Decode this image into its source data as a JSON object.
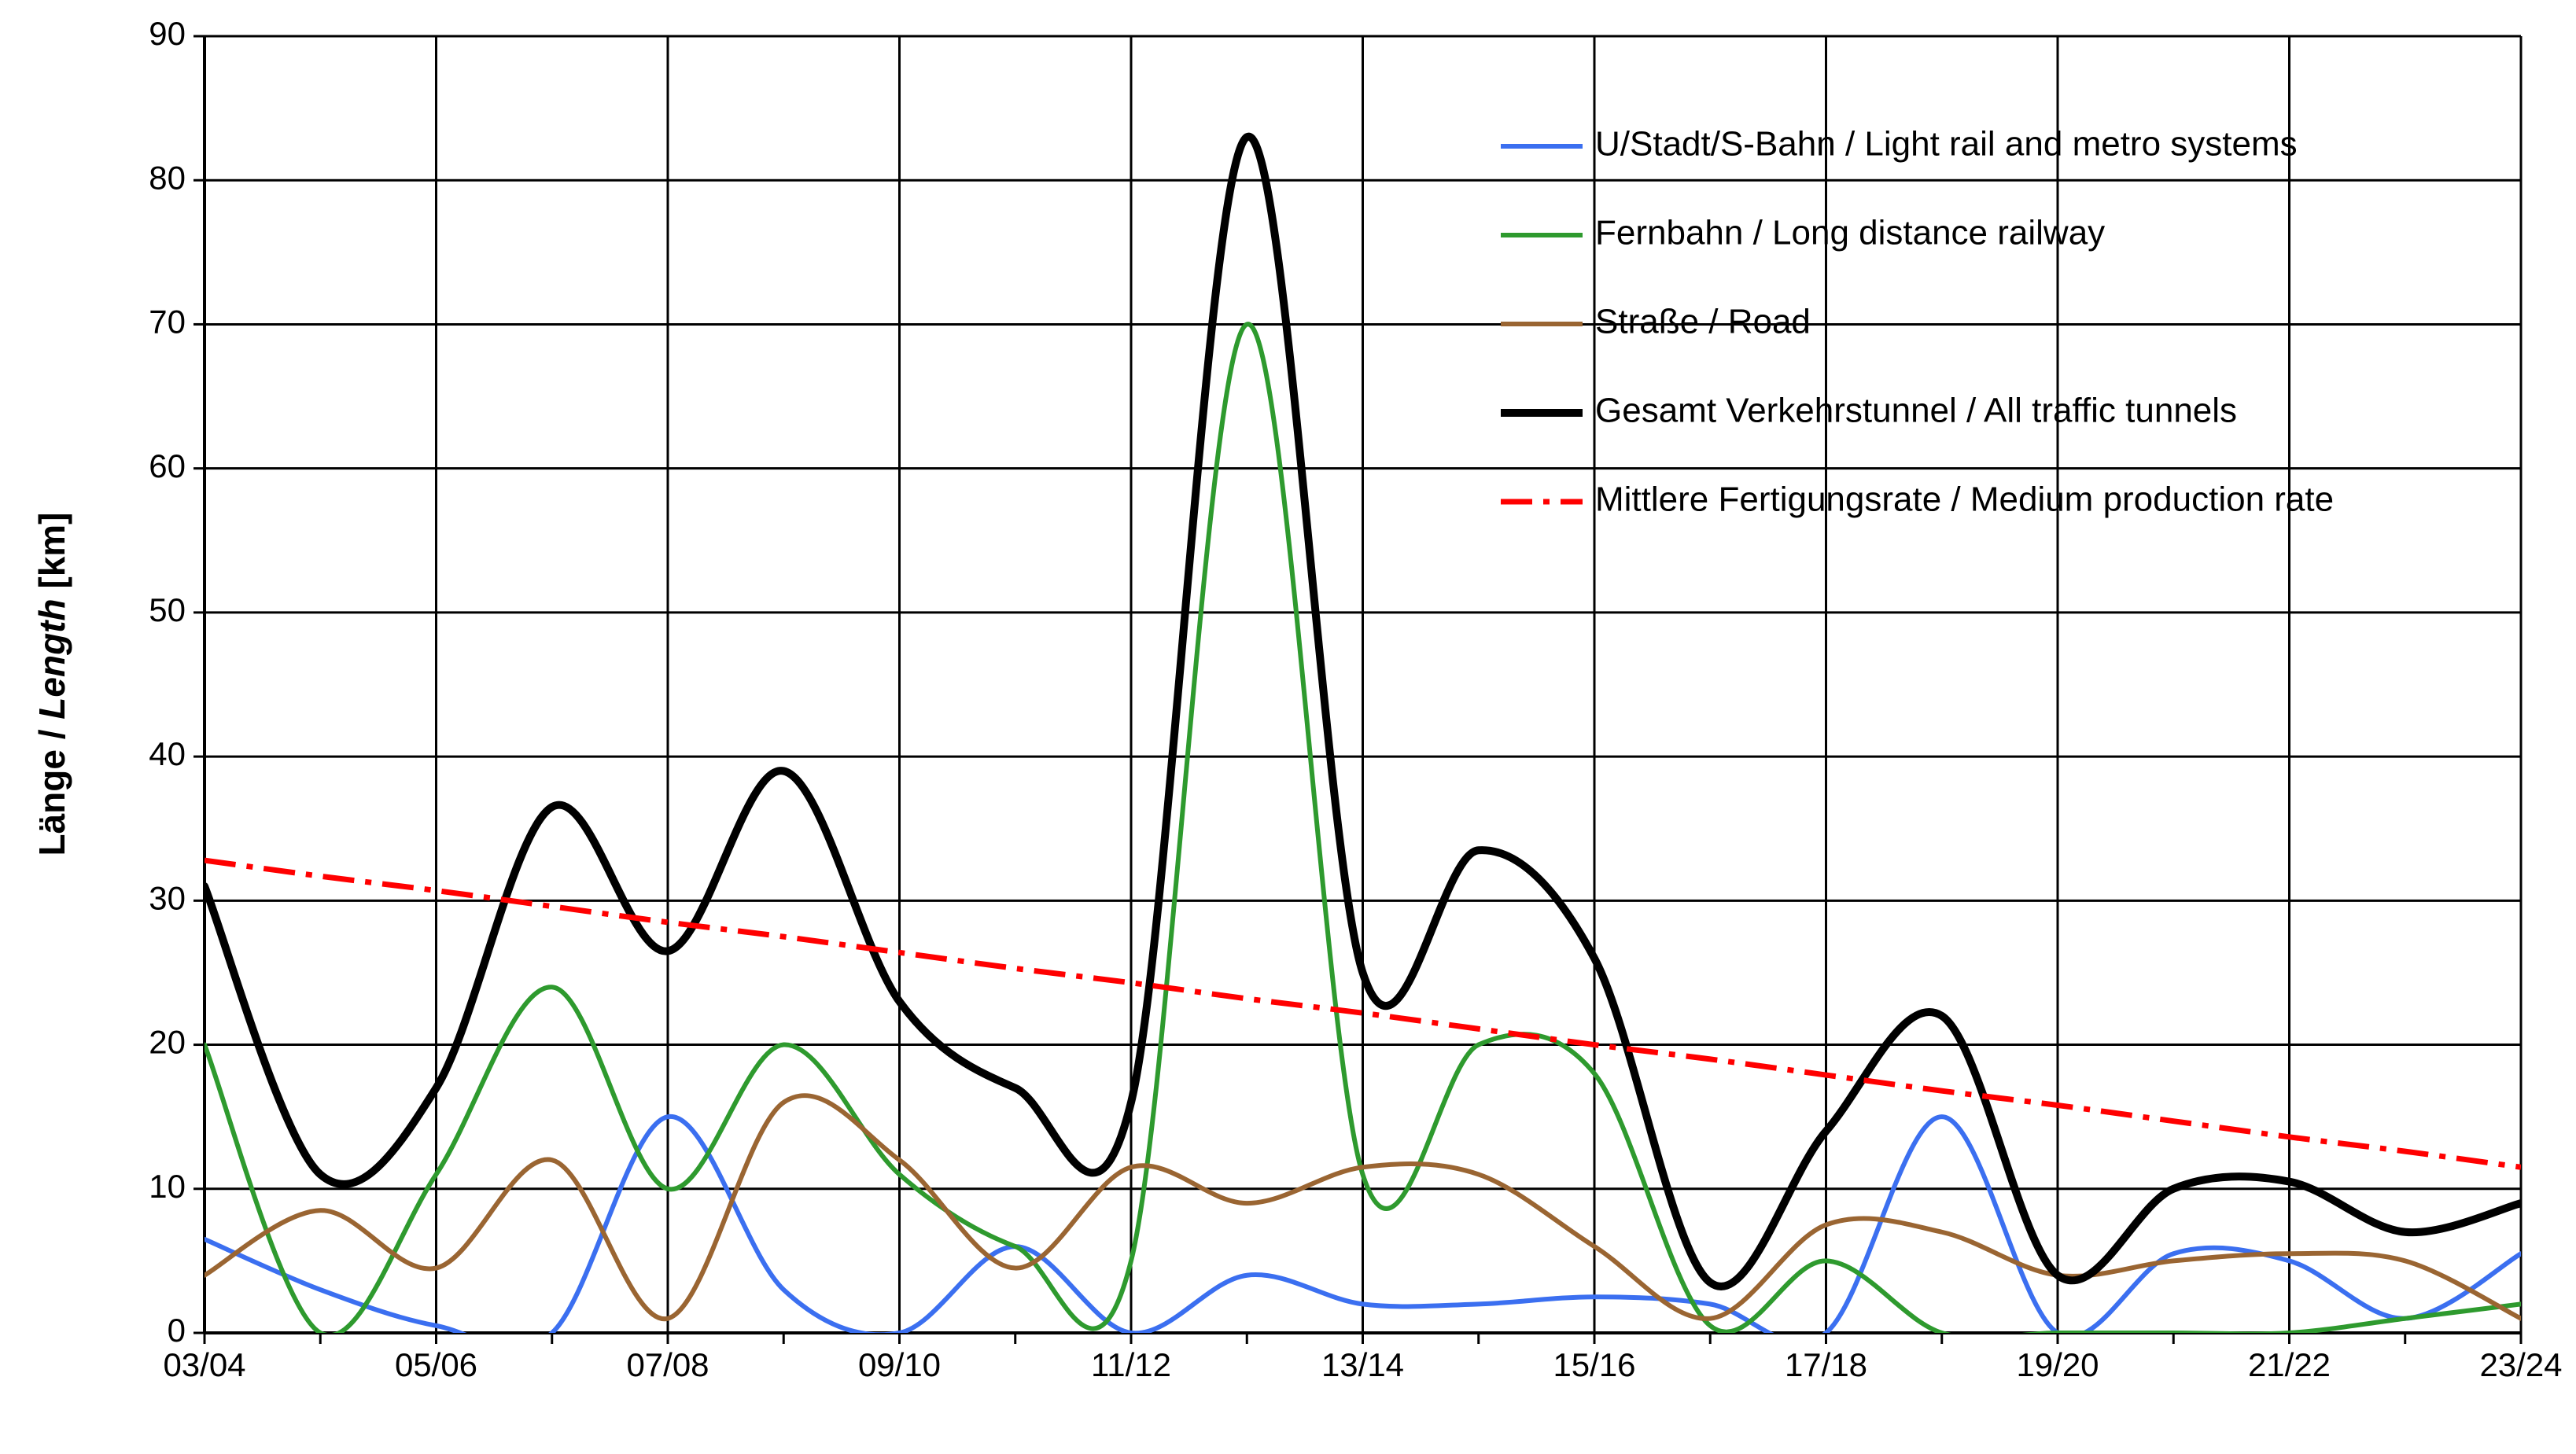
{
  "chart_data": {
    "type": "line",
    "ylabel": [
      "Länge /",
      "Length",
      "[km]"
    ],
    "categories": [
      "03/04",
      null,
      "05/06",
      null,
      "07/08",
      null,
      "09/10",
      null,
      "11/12",
      null,
      "13/14",
      null,
      "15/16",
      null,
      "17/18",
      null,
      "19/20",
      null,
      "21/22",
      null,
      "23/24"
    ],
    "ylim": [
      0,
      90
    ],
    "yticks": [
      0,
      10,
      20,
      30,
      40,
      50,
      60,
      70,
      80,
      90
    ],
    "grid": true,
    "legend": "upper right",
    "smooth": true,
    "series": [
      {
        "name": "U/Stadt/S-Bahn / Light rail and metro systems",
        "color": "#3b6ff0",
        "width": 6,
        "values": [
          6.5,
          3,
          0.5,
          0,
          15,
          3,
          0,
          6,
          0,
          4,
          2,
          2,
          2.5,
          2,
          0,
          15,
          0,
          5.5,
          5,
          1,
          5.5
        ]
      },
      {
        "name": "Fernbahn / Long distance railway",
        "color": "#2e9a2e",
        "width": 6,
        "values": [
          20,
          0,
          11,
          24,
          10,
          20,
          11,
          6,
          5,
          70,
          11,
          20,
          18,
          0.5,
          5,
          0,
          0,
          0,
          0,
          1,
          2
        ]
      },
      {
        "name": "Straße / Road",
        "color": "#9a6532",
        "width": 6,
        "values": [
          4,
          8.5,
          4.5,
          12,
          1,
          16,
          12,
          4.5,
          11.5,
          9,
          11.5,
          11,
          6,
          1,
          7.5,
          7,
          4,
          5,
          5.5,
          5,
          1
        ]
      },
      {
        "name": "Gesamt Verkehrstunnel / All traffic tunnels",
        "color": "#000000",
        "width": 10,
        "values": [
          31,
          11,
          17,
          36.5,
          26.5,
          39,
          23,
          17,
          16,
          83,
          25,
          33.5,
          26,
          3.5,
          14,
          22,
          4,
          10,
          10.5,
          7,
          9
        ]
      },
      {
        "name": "Mittlere Fertigungsrate / Medium production rate",
        "color": "#ff0000",
        "width": 7,
        "dash": "dashdot",
        "values": [
          32.8,
          31.7,
          30.7,
          29.6,
          28.5,
          27.5,
          26.4,
          25.3,
          24.3,
          23.2,
          22.2,
          21.1,
          20.0,
          19.0,
          17.9,
          16.8,
          15.8,
          14.7,
          13.6,
          12.6,
          11.5
        ]
      }
    ]
  }
}
